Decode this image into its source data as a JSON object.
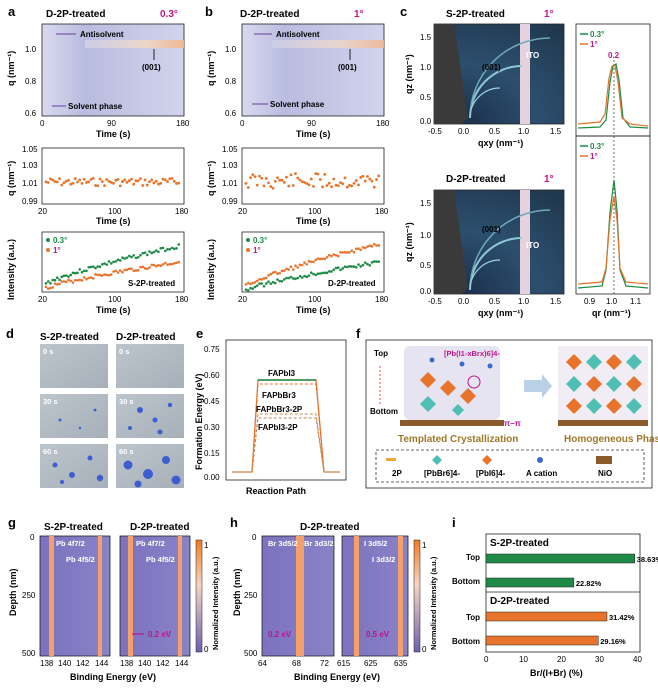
{
  "panel_labels": {
    "a": "a",
    "b": "b",
    "c": "c",
    "d": "d",
    "e": "e",
    "f": "f",
    "g": "g",
    "h": "h",
    "i": "i"
  },
  "panel_a": {
    "title": "D-2P-treated",
    "angle": "0.3°",
    "xlabel": "Time (s)",
    "ylabel": "q (nm⁻¹)",
    "ylabel_mid": "q (nm⁻¹)",
    "ylabel_bot": "Intensity (a.u.)",
    "xticks": [
      "0",
      "90",
      "180"
    ],
    "xticks_mid": [
      "20",
      "100",
      "180"
    ],
    "yticks": [
      "0.6",
      "0.8",
      "1.0"
    ],
    "yticks_mid": [
      "0.99",
      "1.01",
      "1.03",
      "1.05"
    ],
    "antisolvent": "Antisolvent",
    "solvent": "Solvent phase",
    "peak": "(001)",
    "legend": [
      "0.3°",
      "1°"
    ],
    "curve_label": "S-2P-treated"
  },
  "panel_b": {
    "title": "D-2P-treated",
    "angle": "1°",
    "xlabel": "Time (s)",
    "ylabel": "q (nm⁻¹)",
    "ylabel_mid": "q (nm⁻¹)",
    "ylabel_bot": "Intensity (a.u.)",
    "xticks": [
      "0",
      "90",
      "180"
    ],
    "xticks_mid": [
      "20",
      "100",
      "180"
    ],
    "yticks": [
      "0.6",
      "0.8",
      "1.0"
    ],
    "yticks_mid": [
      "0.99",
      "1.01",
      "1.03",
      "1.05"
    ],
    "antisolvent": "Antisolvent",
    "solvent": "Solvent phase",
    "peak": "(001)",
    "legend": [
      "0.3°",
      "1°"
    ],
    "curve_label": "D-2P-treated"
  },
  "panel_c": {
    "top_title": "S-2P-treated",
    "bottom_title": "D-2P-treated",
    "angle": "1°",
    "ylabel": "qz (nm⁻¹)",
    "xlabel": "qxy (nm⁻¹)",
    "xticks": [
      "-0.5",
      "0.0",
      "0.5",
      "1.0",
      "1.5"
    ],
    "yticks": [
      "0.0",
      "0.5",
      "1.0",
      "1.5"
    ],
    "peak": "(001)",
    "ito": "ITO",
    "side_legend": [
      "0.3°",
      "1°"
    ],
    "shift": "0.2",
    "side_xlabel": "qr (nm⁻¹)",
    "side_xticks": [
      "0.9",
      "1.0",
      "1.1"
    ]
  },
  "panel_d": {
    "titles": [
      "S-2P-treated",
      "D-2P-treated"
    ],
    "times": [
      "0 s",
      "30 s",
      "60 s"
    ]
  },
  "panel_e": {
    "ylabel": "Formation Energy (eV)",
    "xlabel": "Reaction Path",
    "yticks": [
      "0.00",
      "0.15",
      "0.30",
      "0.45",
      "0.60",
      "0.75"
    ],
    "labels": [
      "FAPbI3",
      "FAPbBr3",
      "FAPbBr3-2P",
      "FAPbI3-2P"
    ]
  },
  "panel_f": {
    "top": "Top",
    "bottom": "Bottom",
    "complex": "[Pb(I1-xBrx)6]4-",
    "pipi": "π−π",
    "templated": "Templated Crystallization",
    "homogeneous": "Homogeneous Phase",
    "legend": [
      "2P",
      "[PbBr6]4-",
      "[PbI6]4-",
      "A cation",
      "NiO"
    ]
  },
  "panel_g": {
    "titles": [
      "S-2P-treated",
      "D-2P-treated"
    ],
    "peaks_left": [
      "Pb 4f7/2",
      "Pb 4f5/2"
    ],
    "ylabel": "Depth (nm)",
    "xlabel": "Binding Energy (eV)",
    "yticks": [
      "0",
      "250",
      "500"
    ],
    "xticks": [
      "138",
      "140",
      "142",
      "144"
    ],
    "shift": "0.2 eV",
    "cbar_label": "Normalized Intensity (a.u.)",
    "cbar_ticks": [
      "1",
      "0"
    ]
  },
  "panel_h": {
    "title": "D-2P-treated",
    "peaks_br": [
      "Br 3d5/2",
      "Br 3d3/2"
    ],
    "peaks_i": [
      "I 3d5/2",
      "I 3d3/2"
    ],
    "ylabel": "Depth (nm)",
    "xlabel": "Binding Energy (eV)",
    "yticks": [
      "0",
      "250",
      "500"
    ],
    "xticks_br": [
      "64",
      "68",
      "72"
    ],
    "xticks_i": [
      "615",
      "625",
      "635"
    ],
    "shift_br": "0.2 eV",
    "shift_i": "0.5 eV",
    "cbar_label": "Normalized Intensity (a.u.)",
    "cbar_ticks": [
      "1",
      "0"
    ]
  },
  "panel_i": {
    "chart_data": {
      "type": "bar",
      "groups": [
        {
          "name": "S-2P-treated",
          "categories": [
            "Top",
            "Bottom"
          ],
          "values": [
            38.63,
            22.82
          ],
          "labels": [
            "38.63%",
            "22.82%"
          ],
          "color": "#1e8a45"
        },
        {
          "name": "D-2P-treated",
          "categories": [
            "Top",
            "Bottom"
          ],
          "values": [
            31.42,
            29.16
          ],
          "labels": [
            "31.42%",
            "29.16%"
          ],
          "color": "#e8732a"
        }
      ],
      "xlabel": "Br/(I+Br) (%)",
      "xticks": [
        "0",
        "10",
        "20",
        "30",
        "40"
      ],
      "xlim": [
        0,
        40
      ]
    }
  },
  "colors": {
    "green": "#1e8a45",
    "orange": "#e8732a",
    "magenta": "#c0148c",
    "purple": "#6a3aa0"
  }
}
